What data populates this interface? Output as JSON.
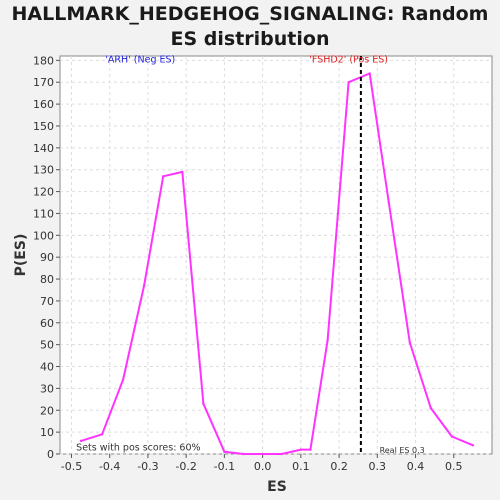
{
  "chart_data": {
    "type": "line",
    "title": "HALLMARK_HEDGEHOG_SIGNALING: Random ES distribution",
    "title_lines": [
      "HALLMARK_HEDGEHOG_SIGNALING: Random",
      "ES distribution"
    ],
    "xlabel": "ES",
    "ylabel": "P(ES)",
    "xlim": [
      -0.53,
      0.6
    ],
    "ylim": [
      0,
      182
    ],
    "x_ticks": [
      -0.5,
      -0.4,
      -0.3,
      -0.2,
      -0.1,
      0.0,
      0.1,
      0.2,
      0.3,
      0.4,
      0.5
    ],
    "x_tick_labels": [
      "-0.5",
      "-0.4",
      "-0.3",
      "-0.2",
      "-0.1",
      "0.0",
      "0.1",
      "0.2",
      "0.3",
      "0.4",
      "0.5"
    ],
    "y_ticks": [
      0,
      10,
      20,
      30,
      40,
      50,
      60,
      70,
      80,
      90,
      100,
      110,
      120,
      130,
      140,
      150,
      160,
      170,
      180
    ],
    "y_tick_labels": [
      "0",
      "10",
      "20",
      "30",
      "40",
      "50",
      "60",
      "70",
      "80",
      "90",
      "100",
      "110",
      "120",
      "130",
      "140",
      "150",
      "160",
      "170",
      "180"
    ],
    "grid": true,
    "series": [
      {
        "color": "#ff33ff",
        "x": [
          -0.475,
          -0.42,
          -0.365,
          -0.31,
          -0.26,
          -0.21,
          -0.155,
          -0.1,
          -0.05,
          0.0,
          0.05,
          0.1,
          0.125,
          0.17,
          0.225,
          0.28,
          0.33,
          0.385,
          0.44,
          0.495,
          0.55
        ],
        "y": [
          6,
          9,
          34,
          77,
          127,
          129,
          23,
          1,
          0,
          0,
          0,
          2,
          2,
          52,
          170,
          174,
          115,
          51,
          21,
          8,
          4
        ]
      }
    ],
    "annotations": [
      {
        "text": "'ARH' (Neg ES)",
        "color": "#2222dd",
        "x": -0.32,
        "y": 179
      },
      {
        "text": "'FSHD2' (Pos ES)",
        "color": "#dd2222",
        "x": 0.225,
        "y": 179
      },
      {
        "text": "Sets with pos scores: 60%",
        "color": "#333333",
        "x": -0.325,
        "y": 1.5
      },
      {
        "text": "Real ES 0.3",
        "color": "#333333",
        "x": 0.365,
        "y": 0.5
      }
    ],
    "reference_line": {
      "x": 0.257,
      "style": "dashed",
      "color": "#000000"
    }
  }
}
